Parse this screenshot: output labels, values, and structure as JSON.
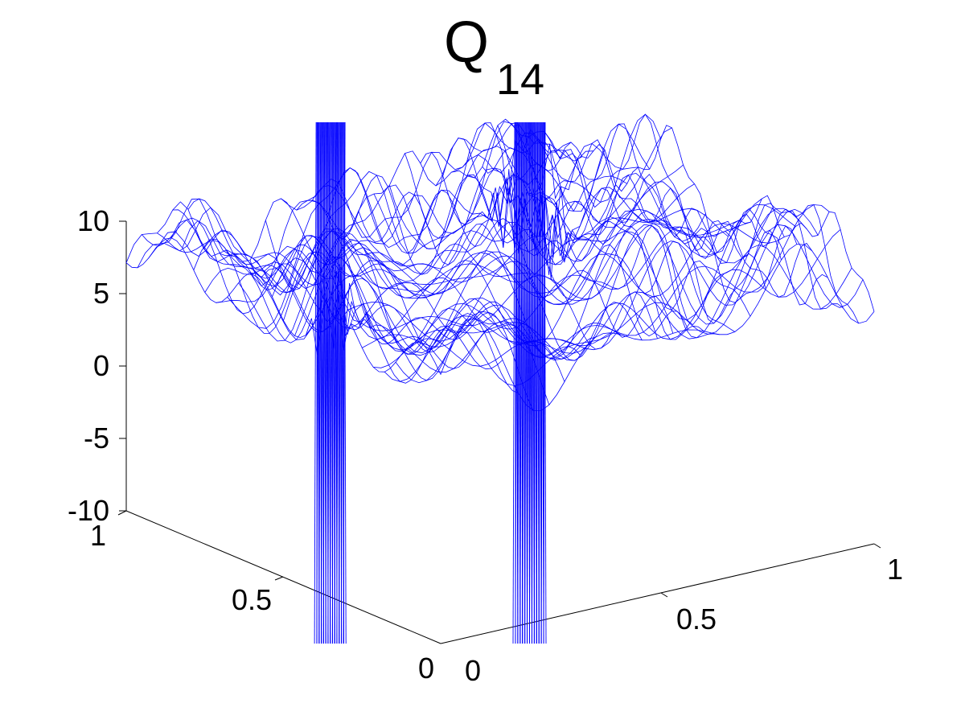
{
  "colors": {
    "surface": "#0000ff",
    "axes": "#000000",
    "background": "#ffffff"
  },
  "chart_data": {
    "type": "surface",
    "title_main": "Q",
    "title_sub": "14",
    "xlabel": "",
    "ylabel": "",
    "zlabel": "",
    "xlim": [
      0,
      1
    ],
    "ylim": [
      0,
      1
    ],
    "zlim": [
      -10,
      10
    ],
    "x_ticks": [
      "0",
      "0.5",
      "1"
    ],
    "y_ticks": [
      "0",
      "0.5",
      "1"
    ],
    "z_ticks": [
      "10",
      "5",
      "0",
      "-5",
      "-10"
    ],
    "grid": false,
    "style": "wireframe",
    "spikes": [
      {
        "x": 0.0,
        "y": 0.35,
        "zmin": -10,
        "zmax": 10
      },
      {
        "x": 0.75,
        "y": 0.75,
        "zmin": -10,
        "zmax": 10
      }
    ]
  }
}
